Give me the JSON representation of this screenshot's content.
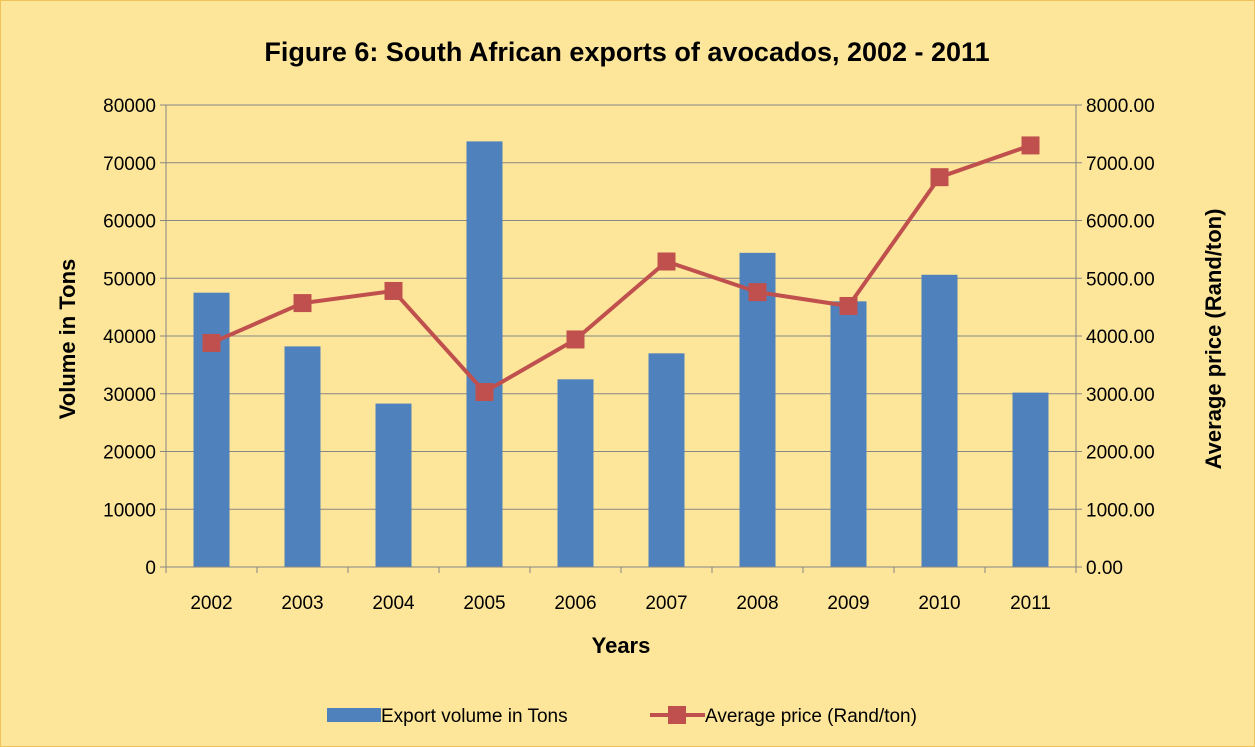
{
  "chart_data": {
    "type": "bar",
    "title": "Figure 6: South African exports of avocados, 2002 - 2011",
    "xlabel": "Years",
    "ylabel": "Volume in Tons",
    "y2label": "Average price (Rand/ton)",
    "categories": [
      "2002",
      "2003",
      "2004",
      "2005",
      "2006",
      "2007",
      "2008",
      "2009",
      "2010",
      "2011"
    ],
    "ylim": [
      0,
      80000
    ],
    "y_ticks": [
      "0",
      "10000",
      "20000",
      "30000",
      "40000",
      "50000",
      "60000",
      "70000",
      "80000"
    ],
    "y2lim": [
      0,
      8000
    ],
    "y2_ticks": [
      "0.00",
      "1000.00",
      "2000.00",
      "3000.00",
      "4000.00",
      "5000.00",
      "6000.00",
      "7000.00",
      "8000.00"
    ],
    "grid": true,
    "legend_position": "bottom",
    "series": [
      {
        "name": "Export volume in Tons",
        "type": "bar",
        "axis": "left",
        "color": "#4f81bd",
        "values": [
          47500,
          38200,
          28300,
          73700,
          32500,
          37000,
          54400,
          46000,
          50600,
          30200
        ]
      },
      {
        "name": "Average price (Rand/ton)",
        "type": "line",
        "axis": "right",
        "color": "#c0504d",
        "marker": "square",
        "values": [
          3880,
          4570,
          4780,
          3030,
          3940,
          5290,
          4760,
          4520,
          6750,
          7300
        ]
      }
    ]
  }
}
